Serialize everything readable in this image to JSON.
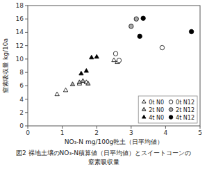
{
  "chart_data": {
    "type": "scatter",
    "xlabel": "NO₃-N mg/100g乾土（日平均値）",
    "ylabel": "窒素吸収量  kg/10a",
    "annotations": [
      "図2 裸地土壌のNO₃-N積算値（日平均値）とスイートコーンの",
      "窒素吸収量"
    ],
    "xlim": [
      0,
      5
    ],
    "ylim": [
      0,
      18
    ],
    "xticks": [
      0,
      1,
      2,
      3,
      4,
      5
    ],
    "yticks": [
      0,
      2,
      4,
      6,
      8,
      10,
      12,
      14,
      16,
      18
    ],
    "legend": "lower right",
    "series": [
      {
        "name": "0t N0",
        "marker": "triangle",
        "color": "white",
        "x": [
          0.85,
          1.1,
          1.5,
          1.7,
          2.5,
          2.6
        ],
        "values": [
          4.7,
          5.3,
          6.3,
          6.5,
          9.8,
          9.5
        ]
      },
      {
        "name": "2t N0",
        "marker": "triangle",
        "color": "#aaaaaa",
        "x": [
          1.3,
          1.5,
          1.6,
          1.75
        ],
        "values": [
          6.2,
          6.5,
          6.7,
          6.3
        ]
      },
      {
        "name": "4t N0",
        "marker": "triangle",
        "color": "black",
        "x": [
          1.55,
          1.7,
          1.85,
          2.0
        ],
        "values": [
          7.8,
          8.2,
          10.2,
          10.3
        ]
      },
      {
        "name": "0t N12",
        "marker": "circle",
        "color": "white",
        "x": [
          2.55,
          2.65,
          3.9
        ],
        "values": [
          10.8,
          9.8,
          11.7
        ]
      },
      {
        "name": "2t N12",
        "marker": "circle",
        "color": "#aaaaaa",
        "x": [
          3.0,
          3.15
        ],
        "values": [
          14.9,
          16.0
        ]
      },
      {
        "name": "4t N12",
        "marker": "circle",
        "color": "black",
        "x": [
          3.25,
          3.35,
          4.75
        ],
        "values": [
          13.4,
          16.1,
          14.1
        ]
      }
    ]
  }
}
